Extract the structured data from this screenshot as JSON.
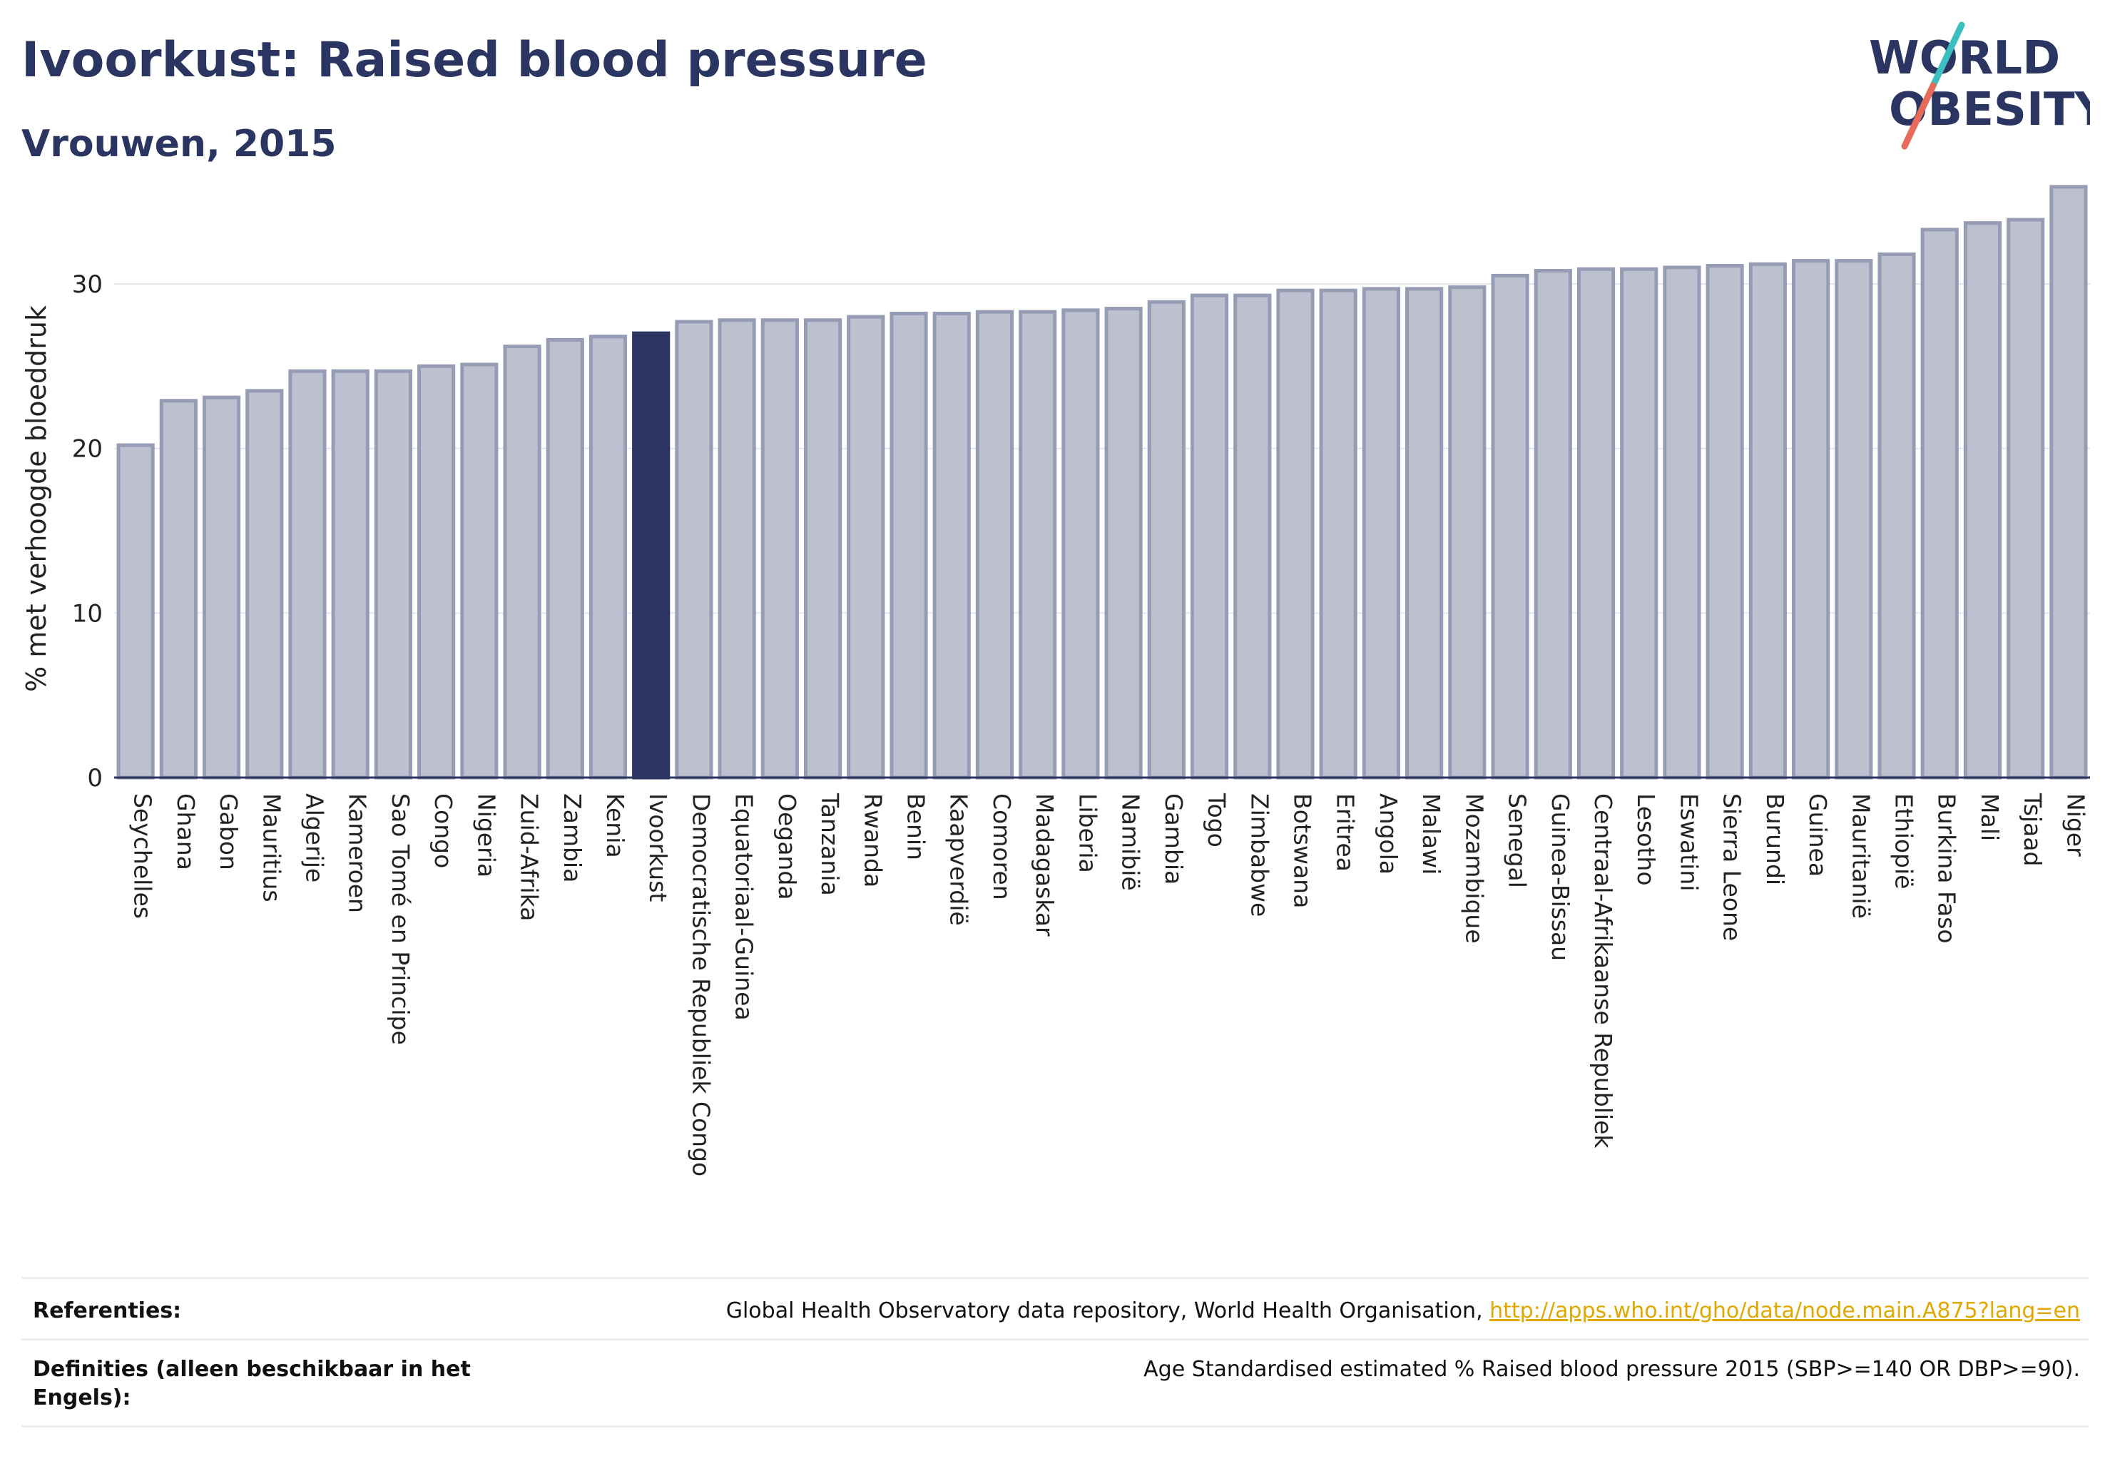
{
  "header": {
    "title": "Ivoorkust: Raised blood pressure",
    "subtitle": "Vrouwen, 2015"
  },
  "logo": {
    "line1": "WORLD",
    "line2": "OBESITY",
    "icon": "world-obesity-logo",
    "colors": {
      "text": "#2b3562",
      "slash_top": "#3cbfbf",
      "slash_bottom": "#e86a5a"
    }
  },
  "colors": {
    "bar": "#bcc0cf",
    "bar_stroke": "#979cb5",
    "highlight": "#2b3562",
    "axis_text": "#222222",
    "grid": "#e6e6ee"
  },
  "chart_data": {
    "type": "bar",
    "title": "Ivoorkust: Raised blood pressure",
    "subtitle": "Vrouwen, 2015",
    "xlabel": "",
    "ylabel": "% met verhoogde bloeddruk",
    "ylim": [
      0,
      36.5
    ],
    "yticks": [
      0,
      10,
      20,
      30
    ],
    "grid": true,
    "highlight": "Ivoorkust",
    "categories": [
      "Seychelles",
      "Ghana",
      "Gabon",
      "Mauritius",
      "Algerije",
      "Kameroen",
      "Sao Tomé en Principe",
      "Congo",
      "Nigeria",
      "Zuid-Afrika",
      "Zambia",
      "Kenia",
      "Ivoorkust",
      "Democratische Republiek Congo",
      "Equatoriaal-Guinea",
      "Oeganda",
      "Tanzania",
      "Rwanda",
      "Benin",
      "Kaapverdië",
      "Comoren",
      "Madagaskar",
      "Liberia",
      "Namibië",
      "Gambia",
      "Togo",
      "Zimbabwe",
      "Botswana",
      "Eritrea",
      "Angola",
      "Malawi",
      "Mozambique",
      "Senegal",
      "Guinea-Bissau",
      "Centraal-Afrikaanse Republiek",
      "Lesotho",
      "Eswatini",
      "Sierra Leone",
      "Burundi",
      "Guinea",
      "Mauritanië",
      "Ethiopië",
      "Burkina Faso",
      "Mali",
      "Tsjaad",
      "Niger"
    ],
    "values": [
      20.2,
      22.9,
      23.1,
      23.5,
      24.7,
      24.7,
      24.7,
      25.0,
      25.1,
      26.2,
      26.6,
      26.8,
      27.0,
      27.7,
      27.8,
      27.8,
      27.8,
      28.0,
      28.2,
      28.2,
      28.3,
      28.3,
      28.4,
      28.5,
      28.9,
      29.3,
      29.3,
      29.6,
      29.6,
      29.7,
      29.7,
      29.8,
      30.5,
      30.8,
      30.9,
      30.9,
      31.0,
      31.1,
      31.2,
      31.4,
      31.4,
      31.8,
      33.3,
      33.7,
      33.9,
      35.9
    ]
  },
  "footer": {
    "references_label": "Referenties:",
    "references_text": "Global Health Observatory data repository, World Health Organisation, ",
    "references_link": "http://apps.who.int/gho/data/node.main.A875?lang=en",
    "definitions_label": "Definities (alleen beschikbaar in het Engels):",
    "definitions_text": "Age Standardised estimated % Raised blood pressure 2015 (SBP>=140 OR DBP>=90)."
  }
}
